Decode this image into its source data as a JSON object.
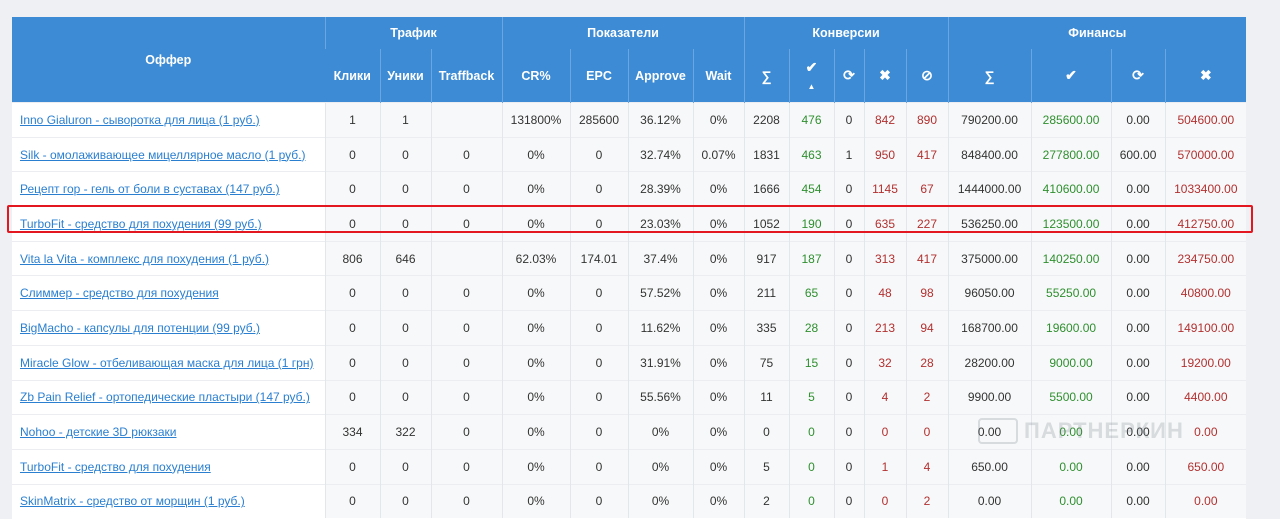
{
  "groups": {
    "offer": "Оффер",
    "traffic": "Трафик",
    "metrics": "Показатели",
    "conversions": "Конверсии",
    "finance": "Финансы"
  },
  "subheaders": {
    "clicks": "Клики",
    "uniques": "Уники",
    "traffback": "Traffback",
    "cr": "CR%",
    "epc": "EPC",
    "approve": "Approve",
    "wait": "Wait",
    "conv_sum": "∑",
    "conv_approved": "✔",
    "conv_pending": "⟳",
    "conv_rejected": "✖",
    "conv_trash": "⊘",
    "fin_sum": "∑",
    "fin_approved": "✔",
    "fin_pending": "⟳",
    "fin_rejected": "✖"
  },
  "rows": [
    {
      "offer": "Inno Gialuron - сыворотка для лица (1 руб.)",
      "clicks": "1",
      "uniques": "1",
      "traffback": "",
      "cr": "131800%",
      "epc": "285600",
      "approve": "36.12%",
      "wait": "0%",
      "c_sum": "2208",
      "c_ok": "476",
      "c_hold": "0",
      "c_rej": "842",
      "c_trash": "890",
      "f_sum": "790200.00",
      "f_ok": "285600.00",
      "f_hold": "0.00",
      "f_rej": "504600.00"
    },
    {
      "offer": "Silk - омолаживающее мицеллярное масло (1 руб.)",
      "clicks": "0",
      "uniques": "0",
      "traffback": "0",
      "cr": "0%",
      "epc": "0",
      "approve": "32.74%",
      "wait": "0.07%",
      "c_sum": "1831",
      "c_ok": "463",
      "c_hold": "1",
      "c_rej": "950",
      "c_trash": "417",
      "f_sum": "848400.00",
      "f_ok": "277800.00",
      "f_hold": "600.00",
      "f_rej": "570000.00"
    },
    {
      "offer": "Рецепт гор - гель от боли в суставах (147 руб.)",
      "clicks": "0",
      "uniques": "0",
      "traffback": "0",
      "cr": "0%",
      "epc": "0",
      "approve": "28.39%",
      "wait": "0%",
      "c_sum": "1666",
      "c_ok": "454",
      "c_hold": "0",
      "c_rej": "1145",
      "c_trash": "67",
      "f_sum": "1444000.00",
      "f_ok": "410600.00",
      "f_hold": "0.00",
      "f_rej": "1033400.00"
    },
    {
      "offer": "TurboFit - средство для похудения (99 руб.)",
      "clicks": "0",
      "uniques": "0",
      "traffback": "0",
      "cr": "0%",
      "epc": "0",
      "approve": "23.03%",
      "wait": "0%",
      "c_sum": "1052",
      "c_ok": "190",
      "c_hold": "0",
      "c_rej": "635",
      "c_trash": "227",
      "f_sum": "536250.00",
      "f_ok": "123500.00",
      "f_hold": "0.00",
      "f_rej": "412750.00"
    },
    {
      "offer": "Vita la Vita - комплекс для похудения (1 руб.)",
      "clicks": "806",
      "uniques": "646",
      "traffback": "",
      "cr": "62.03%",
      "epc": "174.01",
      "approve": "37.4%",
      "wait": "0%",
      "c_sum": "917",
      "c_ok": "187",
      "c_hold": "0",
      "c_rej": "313",
      "c_trash": "417",
      "f_sum": "375000.00",
      "f_ok": "140250.00",
      "f_hold": "0.00",
      "f_rej": "234750.00"
    },
    {
      "offer": "Слиммер - средство для похудения",
      "clicks": "0",
      "uniques": "0",
      "traffback": "0",
      "cr": "0%",
      "epc": "0",
      "approve": "57.52%",
      "wait": "0%",
      "c_sum": "211",
      "c_ok": "65",
      "c_hold": "0",
      "c_rej": "48",
      "c_trash": "98",
      "f_sum": "96050.00",
      "f_ok": "55250.00",
      "f_hold": "0.00",
      "f_rej": "40800.00"
    },
    {
      "offer": "BigMacho - капсулы для потенции (99 руб.)",
      "clicks": "0",
      "uniques": "0",
      "traffback": "0",
      "cr": "0%",
      "epc": "0",
      "approve": "11.62%",
      "wait": "0%",
      "c_sum": "335",
      "c_ok": "28",
      "c_hold": "0",
      "c_rej": "213",
      "c_trash": "94",
      "f_sum": "168700.00",
      "f_ok": "19600.00",
      "f_hold": "0.00",
      "f_rej": "149100.00"
    },
    {
      "offer": "Miracle Glow - отбеливающая маска для лица (1 грн)",
      "clicks": "0",
      "uniques": "0",
      "traffback": "0",
      "cr": "0%",
      "epc": "0",
      "approve": "31.91%",
      "wait": "0%",
      "c_sum": "75",
      "c_ok": "15",
      "c_hold": "0",
      "c_rej": "32",
      "c_trash": "28",
      "f_sum": "28200.00",
      "f_ok": "9000.00",
      "f_hold": "0.00",
      "f_rej": "19200.00"
    },
    {
      "offer": "Zb Pain Relief - ортопедические пластыри (147 руб.)",
      "clicks": "0",
      "uniques": "0",
      "traffback": "0",
      "cr": "0%",
      "epc": "0",
      "approve": "55.56%",
      "wait": "0%",
      "c_sum": "11",
      "c_ok": "5",
      "c_hold": "0",
      "c_rej": "4",
      "c_trash": "2",
      "f_sum": "9900.00",
      "f_ok": "5500.00",
      "f_hold": "0.00",
      "f_rej": "4400.00"
    },
    {
      "offer": "Nohoo - детские 3D рюкзаки",
      "clicks": "334",
      "uniques": "322",
      "traffback": "0",
      "cr": "0%",
      "epc": "0",
      "approve": "0%",
      "wait": "0%",
      "c_sum": "0",
      "c_ok": "0",
      "c_hold": "0",
      "c_rej": "0",
      "c_trash": "0",
      "f_sum": "0.00",
      "f_ok": "0.00",
      "f_hold": "0.00",
      "f_rej": "0.00"
    },
    {
      "offer": "TurboFit - средство для похудения",
      "clicks": "0",
      "uniques": "0",
      "traffback": "0",
      "cr": "0%",
      "epc": "0",
      "approve": "0%",
      "wait": "0%",
      "c_sum": "5",
      "c_ok": "0",
      "c_hold": "0",
      "c_rej": "1",
      "c_trash": "4",
      "f_sum": "650.00",
      "f_ok": "0.00",
      "f_hold": "0.00",
      "f_rej": "650.00"
    },
    {
      "offer": "SkinMatrix - средство от морщин (1 руб.)",
      "clicks": "0",
      "uniques": "0",
      "traffback": "0",
      "cr": "0%",
      "epc": "0",
      "approve": "0%",
      "wait": "0%",
      "c_sum": "2",
      "c_ok": "0",
      "c_hold": "0",
      "c_rej": "0",
      "c_trash": "2",
      "f_sum": "0.00",
      "f_ok": "0.00",
      "f_hold": "0.00",
      "f_rej": "0.00"
    }
  ],
  "watermark": "ПАРТНЕРКИН",
  "colors": {
    "header": "#3d8bd4",
    "approved": "#2f8f2f",
    "rejected": "#b23030",
    "link": "#2a7fd0",
    "highlight": "#e2171f"
  }
}
